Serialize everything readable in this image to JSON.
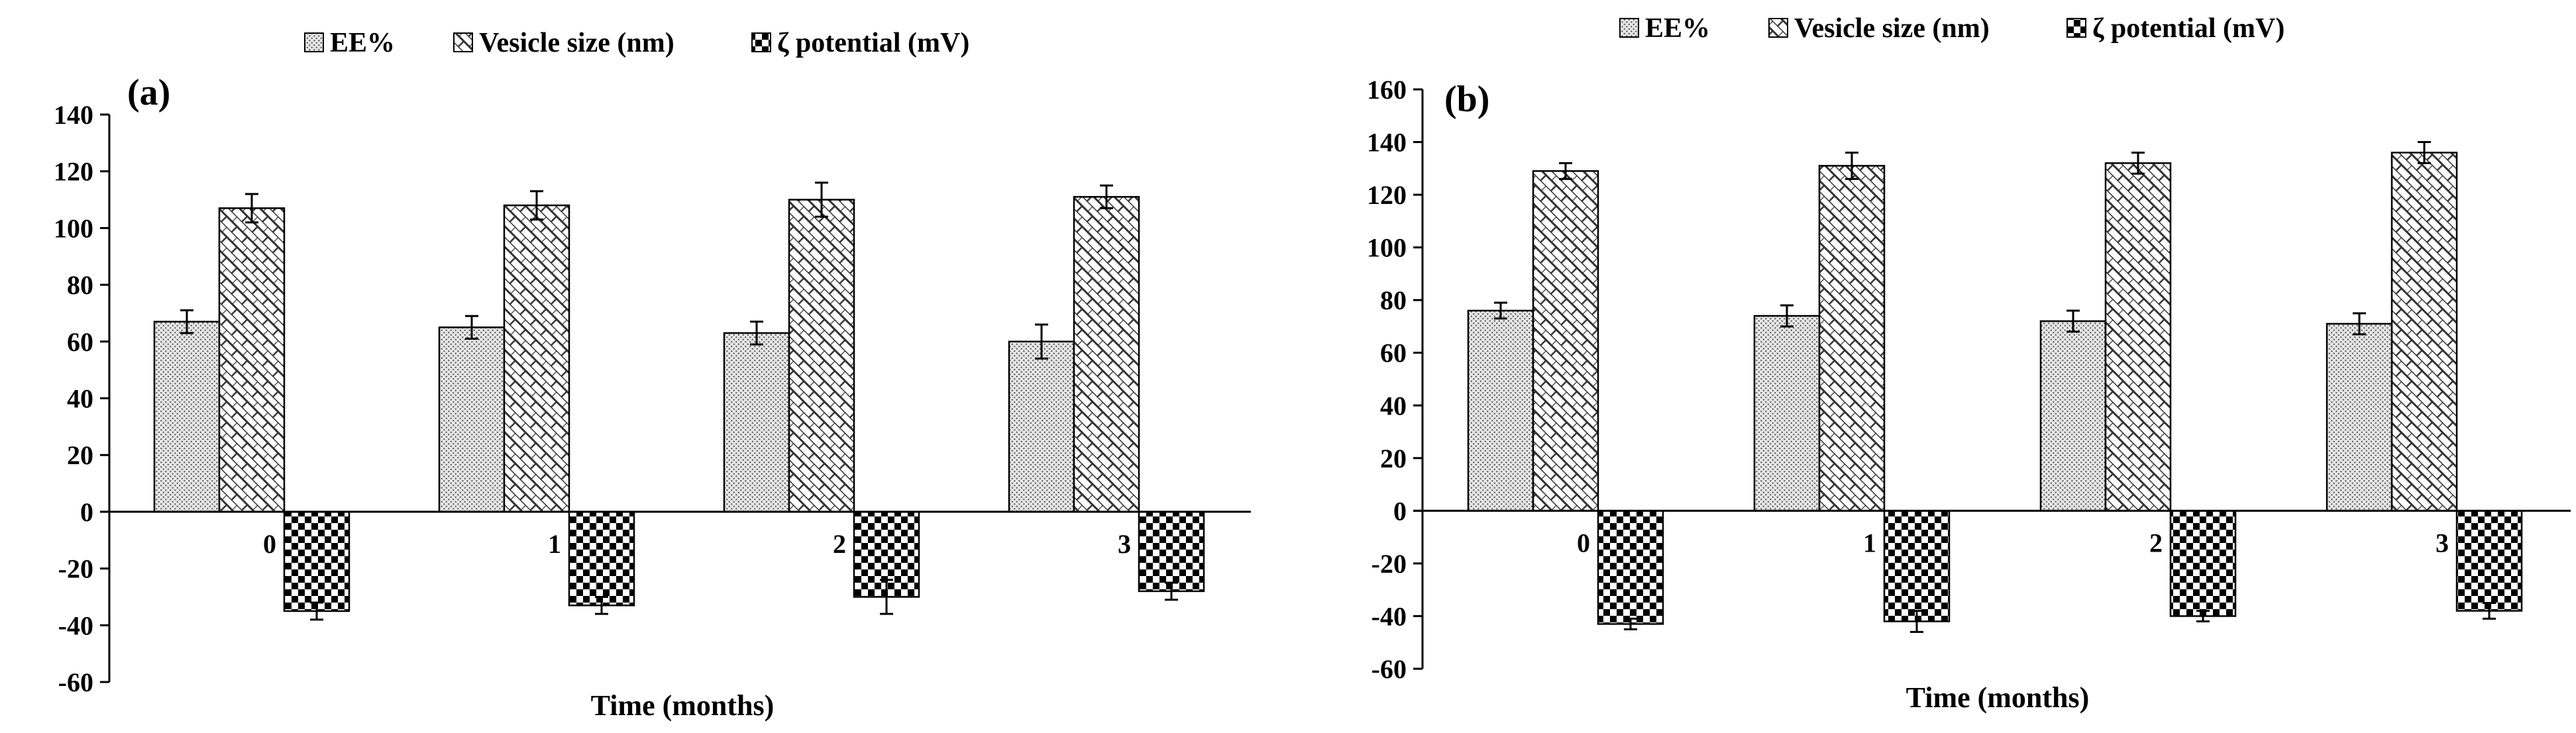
{
  "chart_data": [
    {
      "type": "bar",
      "panel_label": "(a)",
      "categories": [
        "0",
        "1",
        "2",
        "3"
      ],
      "series": [
        {
          "name": "EE%",
          "values": [
            67,
            65,
            63,
            60
          ],
          "errors": [
            4,
            4,
            4,
            6
          ]
        },
        {
          "name": "Vesicle size (nm)",
          "values": [
            107,
            108,
            110,
            111
          ],
          "errors": [
            5,
            5,
            6,
            4
          ]
        },
        {
          "name": "ζ potential (mV)",
          "values": [
            -35,
            -33,
            -30,
            -28
          ],
          "errors": [
            3,
            3,
            6,
            3
          ]
        }
      ],
      "xlabel": "Time (months)",
      "ylabel": "",
      "ylim": [
        -60,
        140
      ],
      "yticks": [
        "140",
        "120",
        "100",
        "80",
        "60",
        "40",
        "20",
        "0",
        "-20",
        "-40",
        "-60"
      ],
      "legend": [
        "EE%",
        "Vesicle size (nm)",
        "ζ potential (mV)"
      ],
      "grid": false
    },
    {
      "type": "bar",
      "panel_label": "(b)",
      "categories": [
        "0",
        "1",
        "2",
        "3"
      ],
      "series": [
        {
          "name": "EE%",
          "values": [
            76,
            74,
            72,
            71
          ],
          "errors": [
            3,
            4,
            4,
            4
          ]
        },
        {
          "name": "Vesicle size (nm)",
          "values": [
            129,
            131,
            132,
            136
          ],
          "errors": [
            3,
            5,
            4,
            4
          ]
        },
        {
          "name": "ζ potential (mV)",
          "values": [
            -43,
            -42,
            -40,
            -38
          ],
          "errors": [
            2,
            4,
            2,
            3
          ]
        }
      ],
      "xlabel": "Time (months)",
      "ylabel": "",
      "ylim": [
        -60,
        160
      ],
      "yticks": [
        "160",
        "140",
        "120",
        "100",
        "80",
        "60",
        "40",
        "20",
        "0",
        "-20",
        "-40",
        "-60"
      ],
      "legend": [
        "EE%",
        "Vesicle size (nm)",
        "ζ potential (mV)"
      ],
      "grid": false
    }
  ]
}
